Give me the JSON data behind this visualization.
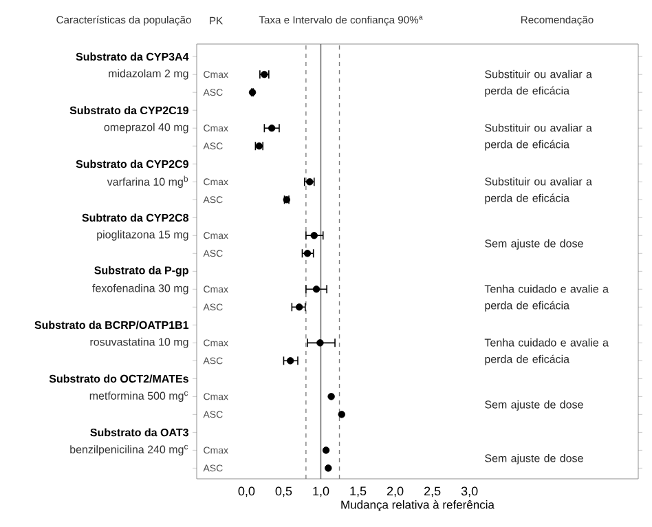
{
  "chart_data": {
    "type": "scatter",
    "orientation": "horizontal",
    "xlabel": "Mudança relativa à referência",
    "categories": [
      "Cmax",
      "ASC",
      "Cmax",
      "ASC",
      "Cmax",
      "ASC",
      "Cmax",
      "ASC",
      "Cmax",
      "ASC",
      "Cmax",
      "ASC",
      "Cmax",
      "ASC",
      "Cmax",
      "ASC"
    ],
    "values": [
      0.24,
      0.08,
      0.34,
      0.17,
      0.85,
      0.54,
      0.91,
      0.82,
      0.94,
      0.71,
      0.99,
      0.59,
      1.14,
      1.28,
      1.07,
      1.1
    ],
    "errors": [
      [
        0.18,
        0.3
      ],
      [
        0.07,
        0.09
      ],
      [
        0.24,
        0.44
      ],
      [
        0.12,
        0.22
      ],
      [
        0.78,
        0.91
      ],
      [
        0.51,
        0.57
      ],
      [
        0.8,
        1.03
      ],
      [
        0.75,
        0.9
      ],
      [
        0.8,
        1.08
      ],
      [
        0.61,
        0.79
      ],
      [
        0.82,
        1.19
      ],
      [
        0.5,
        0.69
      ],
      null,
      null,
      null,
      null
    ],
    "color": "#000000",
    "marker": "circle",
    "xlim": [
      -0.67,
      5.27
    ],
    "xticks": [
      {
        "value": 0,
        "label": "0,0"
      },
      {
        "value": 0.5,
        "label": "0,5"
      },
      {
        "value": 1,
        "label": "1,0"
      },
      {
        "value": 1.5,
        "label": "1,5"
      },
      {
        "value": 2,
        "label": "2,0"
      },
      {
        "value": 2.5,
        "label": "2,5"
      },
      {
        "value": 3,
        "label": "3,0"
      }
    ],
    "ref_lines": [
      {
        "axis": "x",
        "value": 1,
        "color": "#595959",
        "line_style": "solid"
      },
      {
        "axis": "x",
        "value": 0.8,
        "color": "#7f7f7f",
        "line_style": "dashed"
      },
      {
        "axis": "x",
        "value": 1.25,
        "color": "#7f7f7f",
        "line_style": "dashed"
      }
    ],
    "annotations": [
      "Características da população",
      "PK",
      "Taxa e Intervalo de confiança 90%$^{a}$",
      "Recomendação",
      "Substrato da CYP3A4",
      "midazolam 2 mg",
      "Substituir ou avaliar a perda de eficácia",
      "Substrato da CYP2C19",
      "omeprazol 40 mg",
      "Substituir ou avaliar a perda de eficácia",
      "Substrato da CYP2C9",
      "varfarina 10 mg$^{b}$",
      "Substituir ou avaliar a perda de eficácia",
      "Subtrato da CYP2C8",
      "pioglitazona 15 mg",
      "Sem ajuste de dose",
      "Substrato da P-gp",
      "fexofenadina 30 mg",
      "Tenha cuidado e avalie a perda de eficácia",
      "Substrato da BCRP/OATP1B1",
      "rosuvastatina 10 mg",
      "Tenha cuidado e avalie a perda de eficácia",
      "Substrato do OCT2/MATEs",
      "metformina 500 mg$^{c}$",
      "Sem ajuste de dose",
      "Substrato da OAT3",
      "benzilpenicilina 240 mg$^{c}$",
      "Sem ajuste de dose"
    ]
  }
}
